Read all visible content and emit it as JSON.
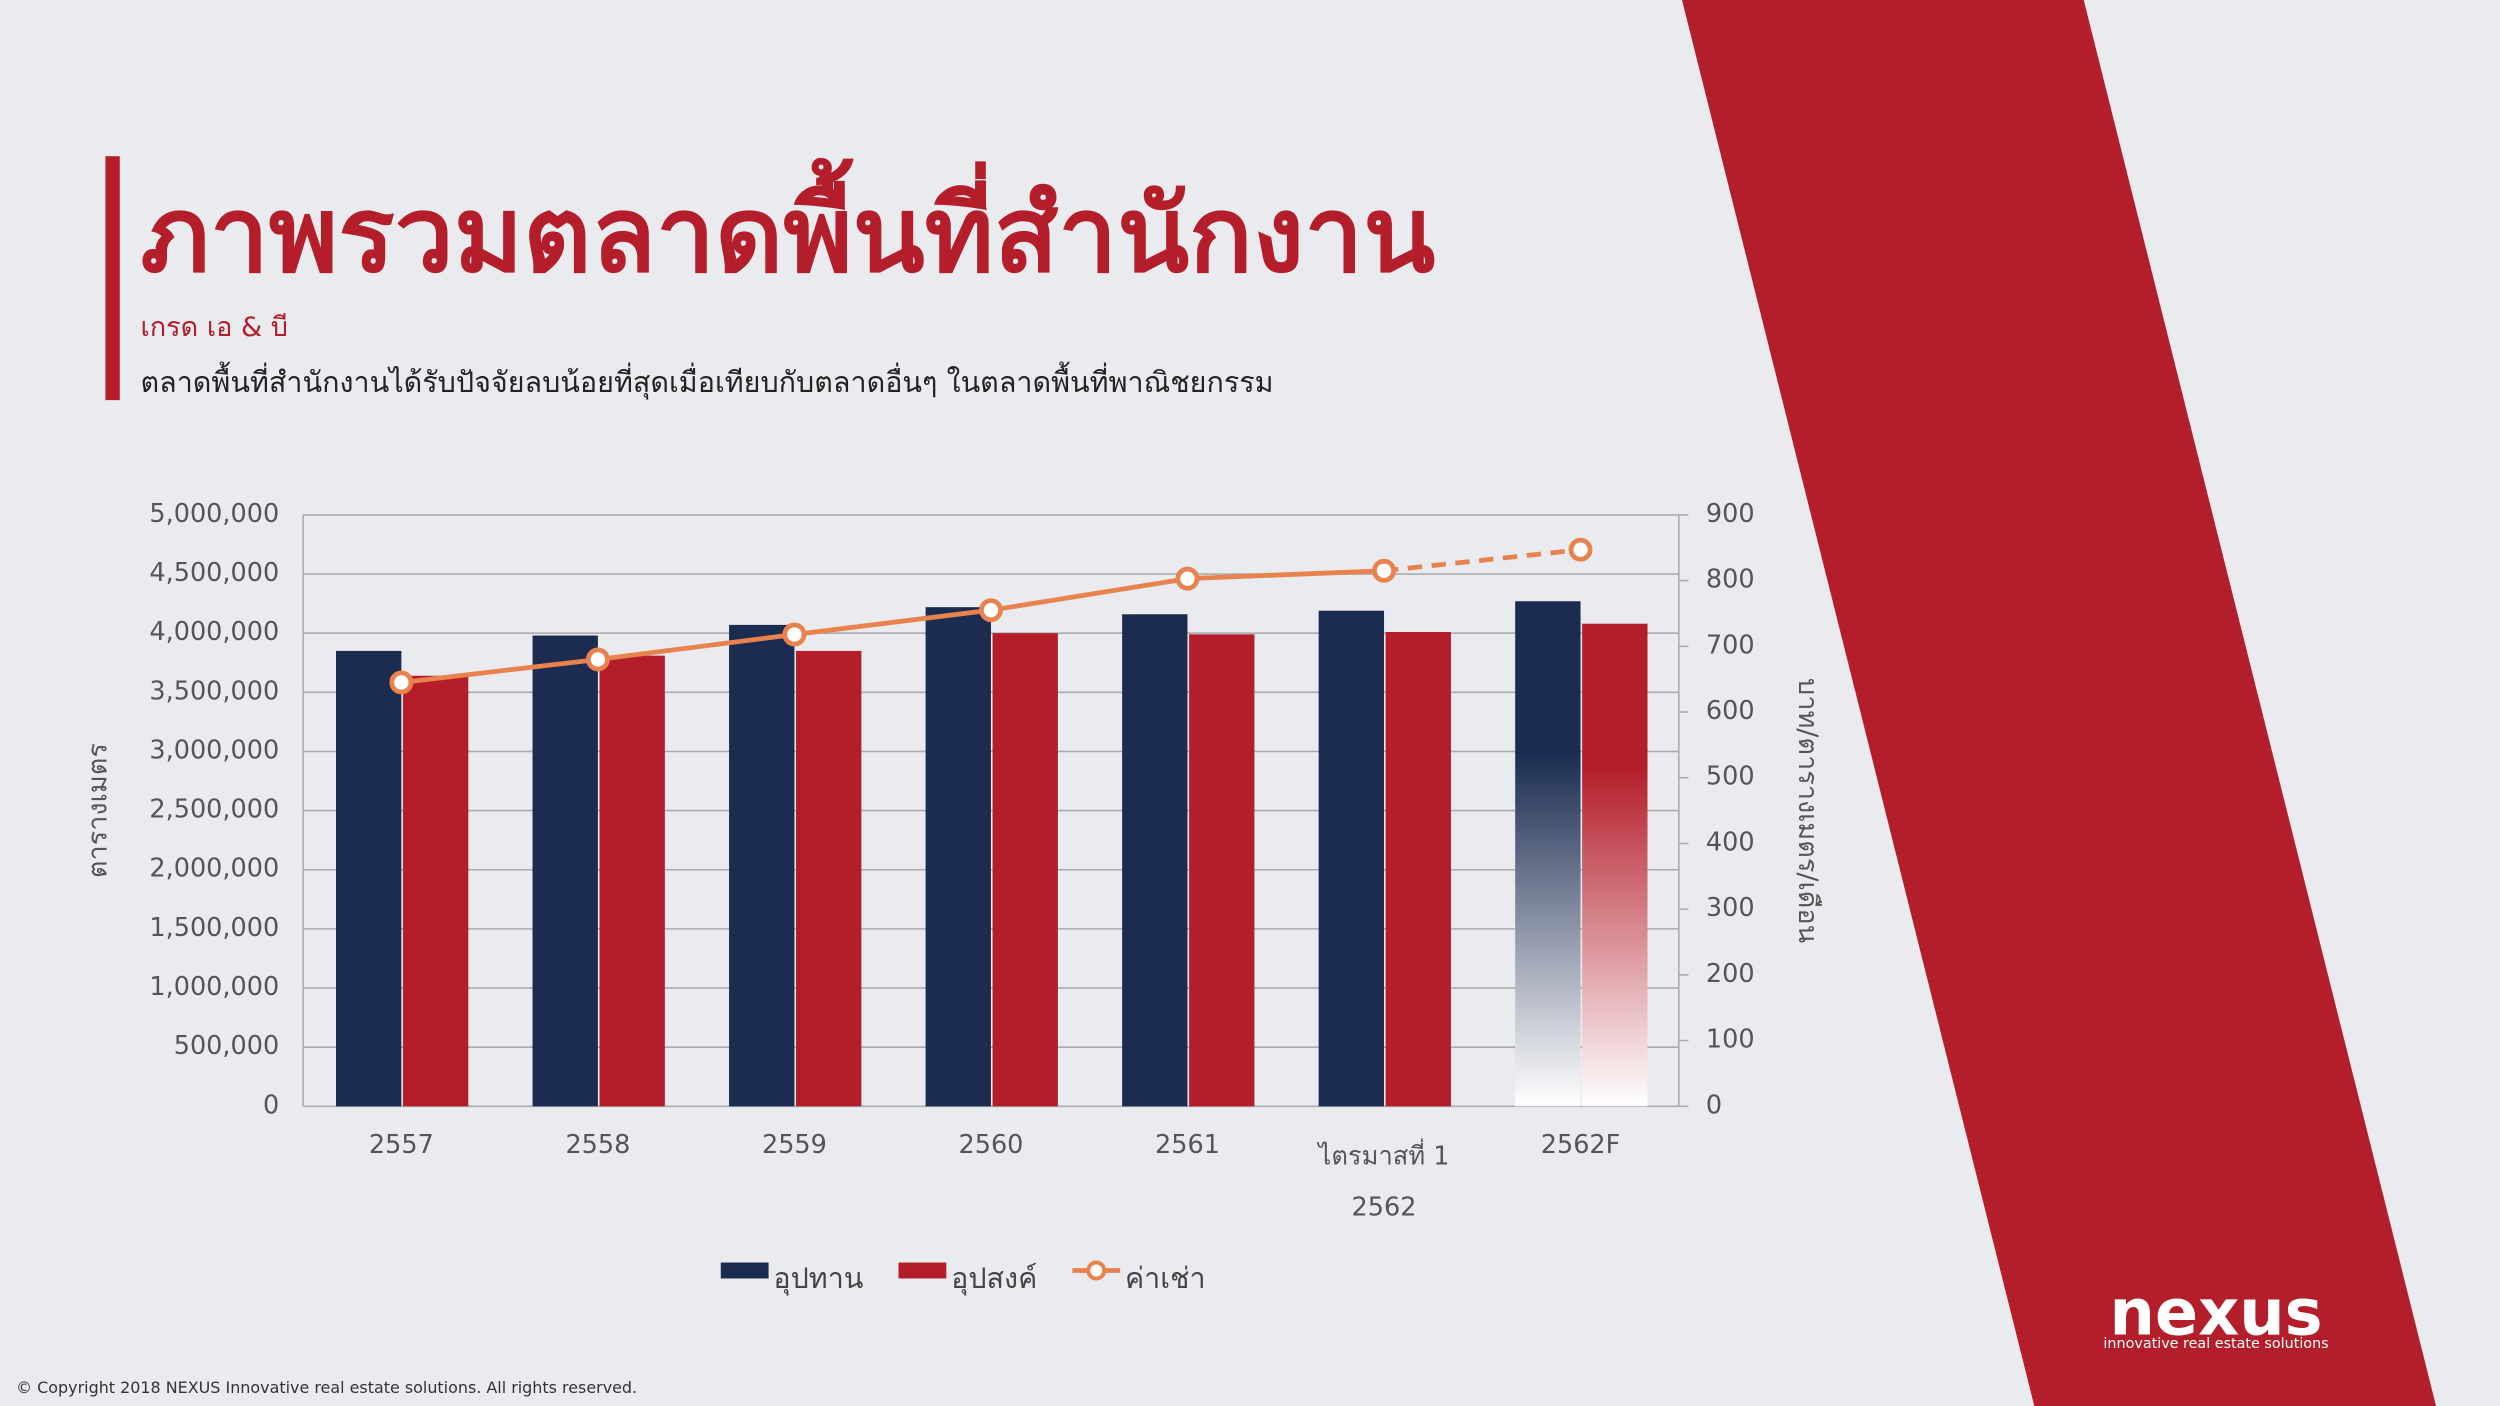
{
  "header": {
    "title": "ภาพรวมตลาดพื้นที่สำนักงาน",
    "subtitle": "เกรด เอ & บี",
    "description": "ตลาดพื้นที่สำนักงานได้รับปัจจัยลบน้อยที่สุดเมื่อเทียบกับตลาดอื่นๆ ในตลาดพื้นที่พาณิชยกรรม"
  },
  "chart_data": {
    "type": "bar",
    "categories": [
      "2557",
      "2558",
      "2559",
      "2560",
      "2561",
      [
        "ไตรมาสที่ 1",
        "2562"
      ],
      "2562F"
    ],
    "series": [
      {
        "name": "อุปทาน",
        "color": "#1b2c50",
        "values": [
          3850000,
          3980000,
          4070000,
          4220000,
          4160000,
          4190000,
          4270000
        ]
      },
      {
        "name": "อุปสงค์",
        "color": "#b41e2b",
        "values": [
          3640000,
          3810000,
          3850000,
          4000000,
          3990000,
          4010000,
          4080000
        ]
      },
      {
        "name": "ค่าเช่า",
        "type": "line",
        "axis": "y2",
        "color": "#e8834f",
        "values": [
          645,
          680,
          718,
          755,
          803,
          815,
          847
        ]
      }
    ],
    "forecast_start": 5,
    "ylabel": "ตารางเมตร",
    "y2label": "บาท/ตารางเมตร/เดือน",
    "ylim": [
      0,
      5000000
    ],
    "yticks": [
      0,
      {
        "value": 500000,
        "label": "500,000"
      },
      {
        "value": 1000000,
        "label": "1,000,000"
      },
      {
        "value": 1500000,
        "label": "1,500,000"
      },
      {
        "value": 2000000,
        "label": "2,000,000"
      },
      {
        "value": 2500000,
        "label": "2,500,000"
      },
      {
        "value": 3000000,
        "label": "3,000,000"
      },
      {
        "value": 3500000,
        "label": "3,500,000"
      },
      {
        "value": 4000000,
        "label": "4,000,000"
      },
      {
        "value": 4500000,
        "label": "4,500,000"
      },
      {
        "value": 5000000,
        "label": "5,000,000"
      }
    ],
    "y2lim": [
      0,
      900
    ],
    "y2ticks": [
      0,
      100,
      200,
      300,
      400,
      500,
      600,
      700,
      800,
      900
    ],
    "grid": true,
    "legend": "bottom"
  },
  "footer": {
    "logo": "nexus",
    "tagline": "innovative real estate solutions",
    "copyright": "© Copyright 2018 NEXUS Innovative real estate solutions. All rights reserved."
  }
}
